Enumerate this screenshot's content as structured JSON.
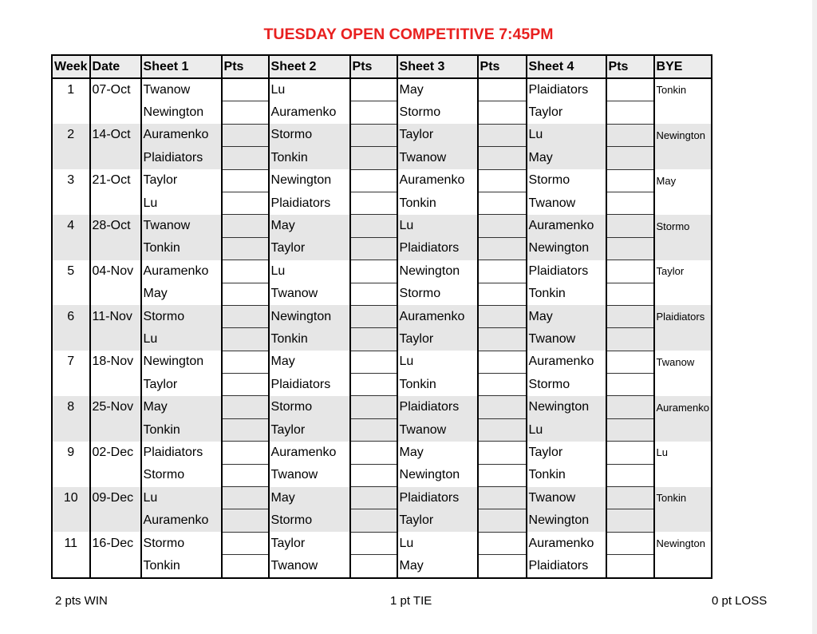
{
  "title": "TUESDAY OPEN COMPETITIVE 7:45PM",
  "headers": [
    "Week",
    "Date",
    "Sheet 1",
    "Pts",
    "Sheet 2",
    "Pts",
    "Sheet 3",
    "Pts",
    "Sheet 4",
    "Pts",
    "BYE"
  ],
  "weeks": [
    {
      "week": "1",
      "date": "07-Oct",
      "s1": [
        "Twanow",
        "Newington"
      ],
      "s2": [
        "Lu",
        "Auramenko"
      ],
      "s3": [
        "May",
        "Stormo"
      ],
      "s4": [
        "Plaidiators",
        "Taylor"
      ],
      "bye": "Tonkin"
    },
    {
      "week": "2",
      "date": "14-Oct",
      "s1": [
        "Auramenko",
        "Plaidiators"
      ],
      "s2": [
        "Stormo",
        "Tonkin"
      ],
      "s3": [
        "Taylor",
        "Twanow"
      ],
      "s4": [
        "Lu",
        "May"
      ],
      "bye": "Newington"
    },
    {
      "week": "3",
      "date": "21-Oct",
      "s1": [
        "Taylor",
        "Lu"
      ],
      "s2": [
        "Newington",
        "Plaidiators"
      ],
      "s3": [
        "Auramenko",
        "Tonkin"
      ],
      "s4": [
        "Stormo",
        "Twanow"
      ],
      "bye": "May"
    },
    {
      "week": "4",
      "date": "28-Oct",
      "s1": [
        "Twanow",
        "Tonkin"
      ],
      "s2": [
        "May",
        "Taylor"
      ],
      "s3": [
        "Lu",
        "Plaidiators"
      ],
      "s4": [
        "Auramenko",
        "Newington"
      ],
      "bye": "Stormo"
    },
    {
      "week": "5",
      "date": "04-Nov",
      "s1": [
        "Auramenko",
        "May"
      ],
      "s2": [
        "Lu",
        "Twanow"
      ],
      "s3": [
        "Newington",
        "Stormo"
      ],
      "s4": [
        "Plaidiators",
        "Tonkin"
      ],
      "bye": "Taylor"
    },
    {
      "week": "6",
      "date": "11-Nov",
      "s1": [
        "Stormo",
        "Lu"
      ],
      "s2": [
        "Newington",
        "Tonkin"
      ],
      "s3": [
        "Auramenko",
        "Taylor"
      ],
      "s4": [
        "May",
        "Twanow"
      ],
      "bye": "Plaidiators"
    },
    {
      "week": "7",
      "date": "18-Nov",
      "s1": [
        "Newington",
        "Taylor"
      ],
      "s2": [
        "May",
        "Plaidiators"
      ],
      "s3": [
        "Lu",
        "Tonkin"
      ],
      "s4": [
        "Auramenko",
        "Stormo"
      ],
      "bye": "Twanow"
    },
    {
      "week": "8",
      "date": "25-Nov",
      "s1": [
        "May",
        "Tonkin"
      ],
      "s2": [
        "Stormo",
        "Taylor"
      ],
      "s3": [
        "Plaidiators",
        "Twanow"
      ],
      "s4": [
        "Newington",
        "Lu"
      ],
      "bye": "Auramenko"
    },
    {
      "week": "9",
      "date": "02-Dec",
      "s1": [
        "Plaidiators",
        "Stormo"
      ],
      "s2": [
        "Auramenko",
        "Twanow"
      ],
      "s3": [
        "May",
        "Newington"
      ],
      "s4": [
        "Taylor",
        "Tonkin"
      ],
      "bye": "Lu"
    },
    {
      "week": "10",
      "date": "09-Dec",
      "s1": [
        "Lu",
        "Auramenko"
      ],
      "s2": [
        "May",
        "Stormo"
      ],
      "s3": [
        "Plaidiators",
        "Taylor"
      ],
      "s4": [
        "Twanow",
        "Newington"
      ],
      "bye": "Tonkin"
    },
    {
      "week": "11",
      "date": "16-Dec",
      "s1": [
        "Stormo",
        "Tonkin"
      ],
      "s2": [
        "Taylor",
        "Twanow"
      ],
      "s3": [
        "Lu",
        "May"
      ],
      "s4": [
        "Auramenko",
        "Plaidiators"
      ],
      "bye": "Newington"
    }
  ],
  "footer": {
    "win": "2 pts WIN",
    "tie": "1 pt TIE",
    "loss": "0 pt LOSS"
  },
  "colors": {
    "title": "#e8201f",
    "band": "#e6e6e6",
    "header": "#ececec"
  }
}
